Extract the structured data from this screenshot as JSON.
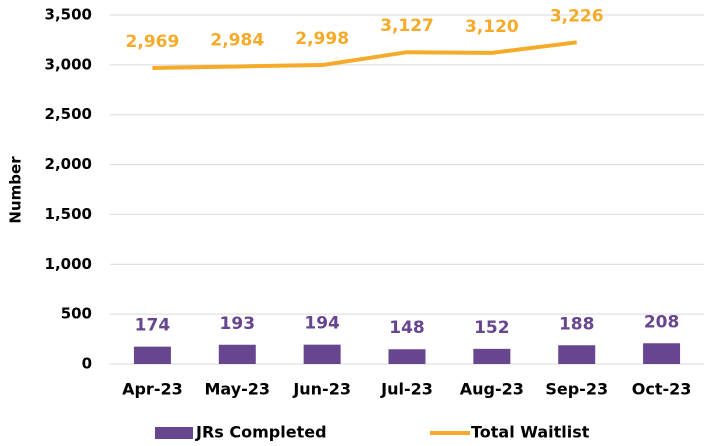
{
  "chart_data": {
    "type": "bar",
    "y_label": "Number",
    "categories": [
      "Apr-23",
      "May-23",
      "Jun-23",
      "Jul-23",
      "Aug-23",
      "Sep-23",
      "Oct-23"
    ],
    "series": [
      {
        "name": "JRs Completed",
        "type": "bar",
        "color": "#67468f",
        "values": [
          174,
          193,
          194,
          148,
          152,
          188,
          208
        ]
      },
      {
        "name": "Total Waitlist",
        "type": "line",
        "color": "#f5ab29",
        "values": [
          2969,
          2984,
          2998,
          3127,
          3120,
          3226,
          null
        ],
        "value_labels": [
          "2,969",
          "2,984",
          "2,998",
          "3,127",
          "3,120",
          "3,226",
          null
        ]
      }
    ],
    "ylim": [
      0,
      3500
    ],
    "yticks": [
      0,
      500,
      {
        "value": 1000,
        "label": "1,000"
      },
      {
        "value": 1500,
        "label": "1,500"
      },
      {
        "value": 2000,
        "label": "2,000"
      },
      {
        "value": 2500,
        "label": "2,500"
      },
      {
        "value": 3000,
        "label": "3,000"
      },
      {
        "value": 3500,
        "label": "3,500"
      }
    ],
    "grid": true,
    "legend": "bottom"
  }
}
